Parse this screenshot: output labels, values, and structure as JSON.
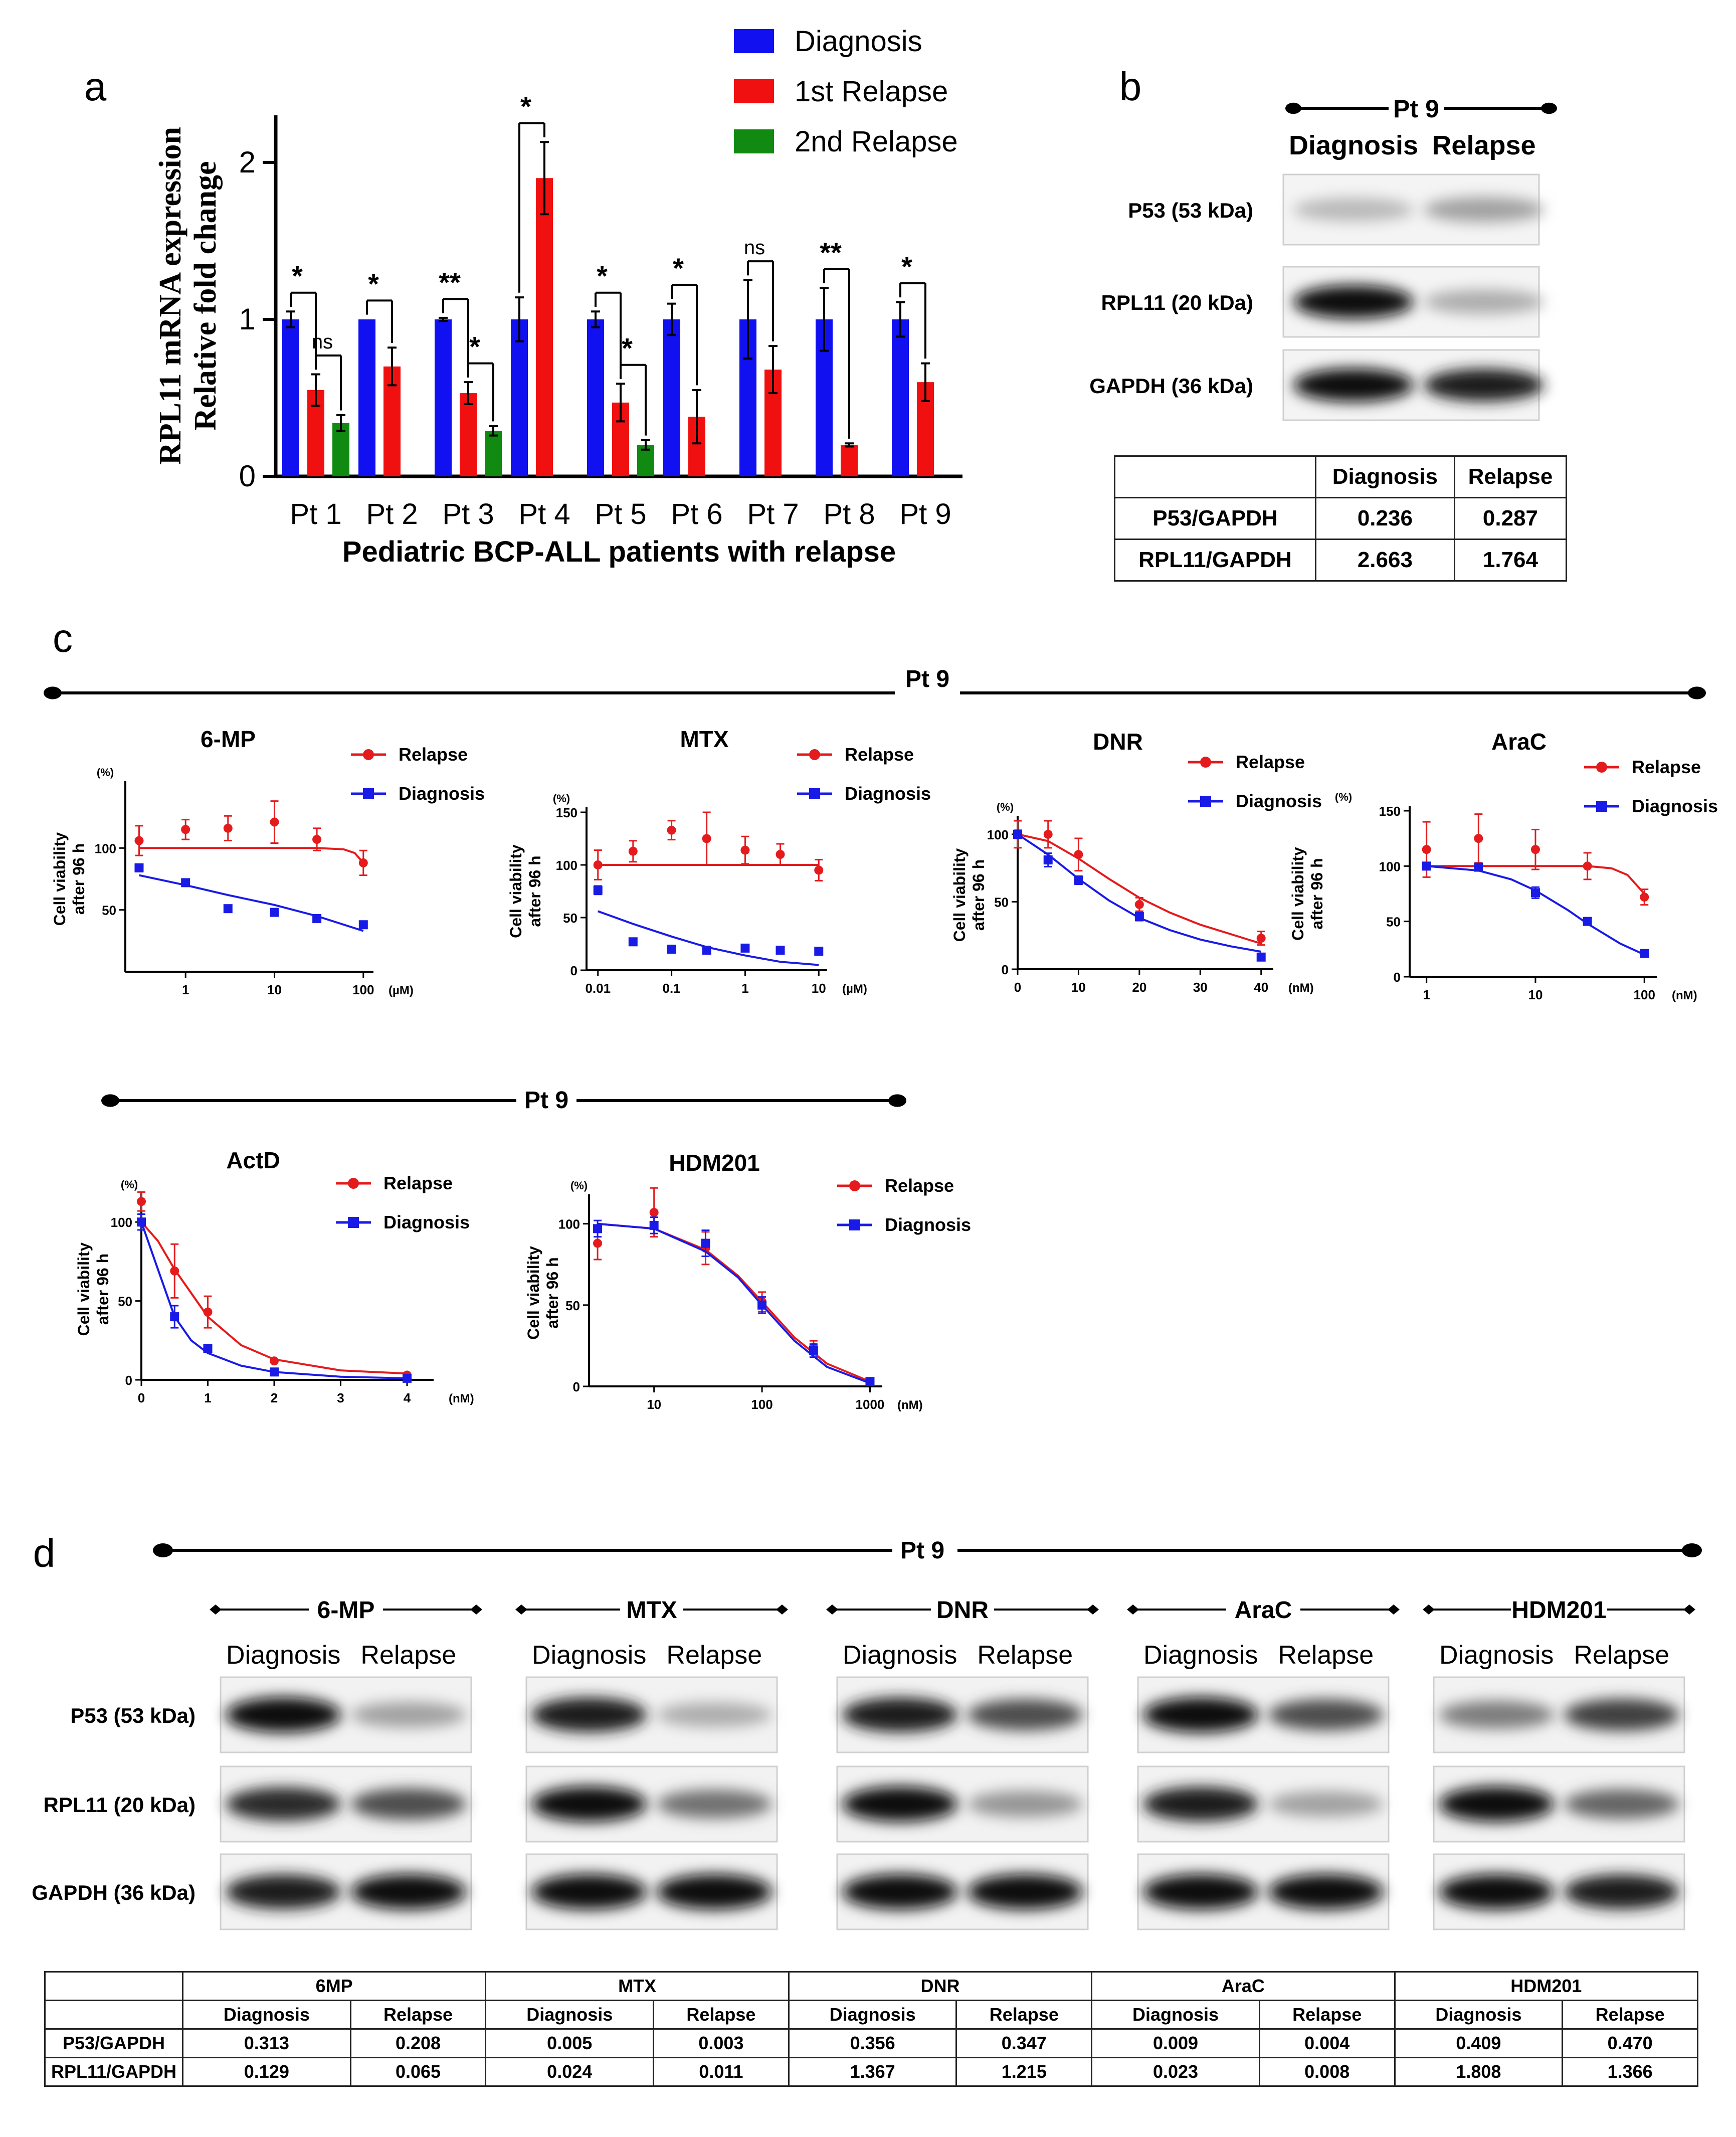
{
  "panel_labels": {
    "a": "a",
    "b": "b",
    "c": "c",
    "d": "d"
  },
  "pt9": "Pt 9",
  "colors": {
    "diagnosis": "#1010f0",
    "relapse1": "#f01010",
    "relapse2": "#108a10",
    "relapse_line": "#e41a1c",
    "diagnosis_line": "#1a1ae6"
  },
  "chart_data": [
    {
      "id": "a",
      "type": "bar",
      "title": "",
      "ylabel_line1": "RPL11 mRNA expression",
      "ylabel_line2": "Relative fold change",
      "xlabel": "Pediatric BCP-ALL patients with relapse",
      "categories": [
        "Pt 1",
        "Pt 2",
        "Pt 3",
        "Pt 4",
        "Pt 5",
        "Pt 6",
        "Pt 7",
        "Pt 8",
        "Pt 9"
      ],
      "ylim": [
        0,
        2.3
      ],
      "yticks": [
        "0",
        "1",
        "2"
      ],
      "legend": [
        "Diagnosis",
        "1st Relapse",
        "2nd Relapse"
      ],
      "series": [
        {
          "name": "Diagnosis",
          "values": [
            1.0,
            1.0,
            1.0,
            1.0,
            1.0,
            1.0,
            1.0,
            1.0,
            1.0
          ],
          "errors": [
            0.05,
            0.0,
            0.01,
            0.14,
            0.05,
            0.1,
            0.25,
            0.2,
            0.11
          ]
        },
        {
          "name": "1st Relapse",
          "values": [
            0.55,
            0.7,
            0.53,
            1.9,
            0.47,
            0.38,
            0.68,
            0.2,
            0.6
          ],
          "errors": [
            0.1,
            0.12,
            0.07,
            0.23,
            0.12,
            0.17,
            0.15,
            0.01,
            0.12
          ]
        },
        {
          "name": "2nd Relapse",
          "values": [
            0.34,
            null,
            0.29,
            null,
            0.2,
            null,
            null,
            null,
            null
          ],
          "errors": [
            0.05,
            null,
            0.03,
            null,
            0.03,
            null,
            null,
            null,
            null
          ]
        }
      ],
      "significance": [
        {
          "cat": 0,
          "from": 0,
          "to": 1,
          "label": "*"
        },
        {
          "cat": 0,
          "from": 1,
          "to": 2,
          "label": "ns"
        },
        {
          "cat": 1,
          "from": 0,
          "to": 1,
          "label": "*"
        },
        {
          "cat": 2,
          "from": 0,
          "to": 1,
          "label": "**"
        },
        {
          "cat": 2,
          "from": 1,
          "to": 2,
          "label": "*"
        },
        {
          "cat": 3,
          "from": 0,
          "to": 1,
          "label": "*"
        },
        {
          "cat": 4,
          "from": 0,
          "to": 1,
          "label": "*"
        },
        {
          "cat": 4,
          "from": 1,
          "to": 2,
          "label": "*"
        },
        {
          "cat": 5,
          "from": 0,
          "to": 1,
          "label": "*"
        },
        {
          "cat": 6,
          "from": 0,
          "to": 1,
          "label": "ns"
        },
        {
          "cat": 7,
          "from": 0,
          "to": 1,
          "label": "**"
        },
        {
          "cat": 8,
          "from": 0,
          "to": 1,
          "label": "*"
        }
      ]
    },
    {
      "id": "c-6mp",
      "type": "scatter",
      "title": "6-MP",
      "scale": "log",
      "unit": "(µM)",
      "xticks": [
        1,
        10,
        100
      ],
      "xtick_labels": [
        "1",
        "10",
        "100"
      ],
      "yticks": [
        50,
        100
      ],
      "ylim": [
        0,
        150
      ],
      "ylabel_line1": "Cell viability",
      "ylabel_line2": "after 96 h",
      "series": [
        {
          "name": "Relapse",
          "x": [
            0.3,
            1,
            3,
            10,
            30,
            100
          ],
          "y": [
            106,
            115,
            116,
            121,
            107,
            88
          ],
          "err": [
            12,
            8,
            10,
            17,
            9,
            10
          ],
          "fit": [
            [
              0.3,
              100
            ],
            [
              30,
              100
            ],
            [
              60,
              99
            ],
            [
              80,
              96
            ],
            [
              100,
              88
            ]
          ]
        },
        {
          "name": "Diagnosis",
          "x": [
            0.3,
            1,
            3,
            10,
            30,
            100
          ],
          "y": [
            84,
            72,
            51,
            48,
            43,
            38
          ],
          "err": [
            3,
            0,
            0,
            0,
            0,
            0
          ],
          "fit": [
            [
              0.3,
              78
            ],
            [
              1,
              70
            ],
            [
              3,
              62
            ],
            [
              10,
              54
            ],
            [
              30,
              45
            ],
            [
              100,
              33
            ]
          ]
        }
      ]
    },
    {
      "id": "c-mtx",
      "type": "scatter",
      "title": "MTX",
      "scale": "log",
      "unit": "(µM)",
      "xticks": [
        0.01,
        0.1,
        1,
        10
      ],
      "xtick_labels": [
        "0.01",
        "0.1",
        "1",
        "10"
      ],
      "yticks": [
        0,
        50,
        100,
        150
      ],
      "ylim": [
        0,
        150
      ],
      "ylabel_line1": "Cell viability",
      "ylabel_line2": "after 96 h",
      "series": [
        {
          "name": "Relapse",
          "x": [
            0.01,
            0.03,
            0.1,
            0.3,
            1,
            3,
            10
          ],
          "y": [
            100,
            113,
            133,
            125,
            114,
            110,
            95
          ],
          "err": [
            14,
            10,
            9,
            25,
            13,
            10,
            10
          ],
          "fit": [
            [
              0.01,
              100
            ],
            [
              10,
              100
            ]
          ]
        },
        {
          "name": "Diagnosis",
          "x": [
            0.01,
            0.03,
            0.1,
            0.3,
            1,
            3,
            10
          ],
          "y": [
            76,
            27,
            20,
            19,
            21,
            19,
            18
          ],
          "err": [
            4,
            0,
            0,
            0,
            0,
            0,
            0
          ],
          "fit": [
            [
              0.01,
              56
            ],
            [
              0.03,
              44
            ],
            [
              0.1,
              32
            ],
            [
              0.3,
              22
            ],
            [
              1,
              14
            ],
            [
              3,
              8
            ],
            [
              10,
              5
            ]
          ]
        }
      ]
    },
    {
      "id": "c-dnr",
      "type": "scatter",
      "title": "DNR",
      "scale": "linear",
      "unit": "(nM)",
      "xticks": [
        0,
        10,
        20,
        30,
        40
      ],
      "xtick_labels": [
        "0",
        "10",
        "20",
        "30",
        "40"
      ],
      "xlim": [
        0,
        42
      ],
      "yticks": [
        0,
        50,
        100
      ],
      "ylim": [
        0,
        110
      ],
      "ylabel_line1": "Cell viability",
      "ylabel_line2": "after 96 h",
      "series": [
        {
          "name": "Relapse",
          "x": [
            0,
            5,
            10,
            20,
            40
          ],
          "y": [
            100,
            100,
            85,
            48,
            23
          ],
          "err": [
            10,
            10,
            12,
            5,
            5
          ],
          "fit": [
            [
              0,
              100
            ],
            [
              5,
              95
            ],
            [
              10,
              82
            ],
            [
              15,
              67
            ],
            [
              20,
              53
            ],
            [
              25,
              42
            ],
            [
              30,
              33
            ],
            [
              35,
              26
            ],
            [
              40,
              19
            ]
          ]
        },
        {
          "name": "Diagnosis",
          "x": [
            0,
            5,
            10,
            20,
            40
          ],
          "y": [
            100,
            81,
            66,
            39,
            9
          ],
          "err": [
            3,
            5,
            3,
            3,
            0
          ],
          "fit": [
            [
              0,
              100
            ],
            [
              5,
              85
            ],
            [
              10,
              67
            ],
            [
              15,
              51
            ],
            [
              20,
              38
            ],
            [
              25,
              29
            ],
            [
              30,
              22
            ],
            [
              35,
              17
            ],
            [
              40,
              13
            ]
          ]
        }
      ]
    },
    {
      "id": "c-arac",
      "type": "scatter",
      "title": "AraC",
      "scale": "log",
      "unit": "(nM)",
      "xticks": [
        1,
        10,
        100
      ],
      "xtick_labels": [
        "1",
        "10",
        "100"
      ],
      "yticks": [
        0,
        50,
        100,
        150
      ],
      "ylim": [
        0,
        150
      ],
      "ylabel_line1": "Cell viability",
      "ylabel_line2": "after 96 h",
      "series": [
        {
          "name": "Relapse",
          "x": [
            1,
            3,
            10,
            30,
            100
          ],
          "y": [
            115,
            125,
            115,
            100,
            72
          ],
          "err": [
            25,
            22,
            18,
            12,
            7
          ],
          "fit": [
            [
              1,
              100
            ],
            [
              30,
              100
            ],
            [
              50,
              98
            ],
            [
              70,
              92
            ],
            [
              100,
              75
            ]
          ]
        },
        {
          "name": "Diagnosis",
          "x": [
            1,
            3,
            10,
            30,
            100
          ],
          "y": [
            100,
            99,
            76,
            50,
            21
          ],
          "err": [
            0,
            3,
            5,
            0,
            0
          ],
          "fit": [
            [
              1,
              100
            ],
            [
              3,
              96
            ],
            [
              6,
              88
            ],
            [
              10,
              78
            ],
            [
              20,
              60
            ],
            [
              30,
              48
            ],
            [
              60,
              30
            ],
            [
              100,
              20
            ]
          ]
        }
      ]
    },
    {
      "id": "c-actd",
      "type": "scatter",
      "title": "ActD",
      "scale": "linear",
      "unit": "(nM)",
      "xticks": [
        0,
        1,
        2,
        3,
        4
      ],
      "xtick_labels": [
        "0",
        "1",
        "2",
        "3",
        "4"
      ],
      "xlim": [
        0,
        4.4
      ],
      "yticks": [
        0,
        50,
        100
      ],
      "ylim": [
        0,
        115
      ],
      "ylabel_line1": "Cell viability",
      "ylabel_line2": "after 96 h",
      "series": [
        {
          "name": "Relapse",
          "x": [
            0,
            0.5,
            1,
            2,
            4
          ],
          "y": [
            113,
            69,
            43,
            12,
            3
          ],
          "err": [
            6,
            17,
            10,
            0,
            0
          ],
          "fit": [
            [
              0,
              100
            ],
            [
              0.25,
              88
            ],
            [
              0.5,
              70
            ],
            [
              0.75,
              55
            ],
            [
              1,
              40
            ],
            [
              1.5,
              22
            ],
            [
              2,
              13
            ],
            [
              3,
              6
            ],
            [
              4,
              4
            ]
          ]
        },
        {
          "name": "Diagnosis",
          "x": [
            0,
            0.5,
            1,
            2,
            4
          ],
          "y": [
            100,
            40,
            20,
            5,
            1
          ],
          "err": [
            5,
            7,
            0,
            0,
            0
          ],
          "fit": [
            [
              0,
              100
            ],
            [
              0.25,
              70
            ],
            [
              0.5,
              40
            ],
            [
              0.75,
              25
            ],
            [
              1,
              17
            ],
            [
              1.5,
              9
            ],
            [
              2,
              5
            ],
            [
              3,
              2
            ],
            [
              4,
              1
            ]
          ]
        }
      ]
    },
    {
      "id": "c-hdm201",
      "type": "scatter",
      "title": "HDM201",
      "scale": "log",
      "unit": "(nM)",
      "xticks": [
        10,
        100,
        1000
      ],
      "xtick_labels": [
        "10",
        "100",
        "1000"
      ],
      "xlim": [
        2.5,
        1300
      ],
      "yticks": [
        0,
        50,
        100
      ],
      "ylim": [
        0,
        115
      ],
      "ylabel_line1": "Cell viability",
      "ylabel_line2": "after 96 h",
      "series": [
        {
          "name": "Relapse",
          "x": [
            3,
            10,
            30,
            100,
            300,
            1000
          ],
          "y": [
            88,
            107,
            85,
            52,
            24,
            3
          ],
          "err": [
            10,
            15,
            10,
            6,
            4,
            2
          ],
          "fit": [
            [
              3,
              100
            ],
            [
              10,
              97
            ],
            [
              30,
              84
            ],
            [
              60,
              68
            ],
            [
              100,
              52
            ],
            [
              200,
              30
            ],
            [
              400,
              14
            ],
            [
              1000,
              3
            ]
          ]
        },
        {
          "name": "Diagnosis",
          "x": [
            3,
            10,
            30,
            100,
            300,
            1000
          ],
          "y": [
            97,
            99,
            88,
            50,
            22,
            3
          ],
          "err": [
            5,
            5,
            8,
            5,
            4,
            2
          ],
          "fit": [
            [
              3,
              100
            ],
            [
              10,
              97
            ],
            [
              30,
              83
            ],
            [
              60,
              67
            ],
            [
              100,
              50
            ],
            [
              200,
              28
            ],
            [
              400,
              12
            ],
            [
              1000,
              2
            ]
          ]
        }
      ]
    }
  ],
  "legend_labels": {
    "relapse": "Relapse",
    "diagnosis": "Diagnosis",
    "pct": "(%)"
  },
  "blot_b": {
    "pt": "Pt 9",
    "cols": [
      "Diagnosis",
      "Relapse"
    ],
    "rows": [
      "P53 (53 kDa)",
      "RPL11 (20 kDa)",
      "GAPDH (36 kDa)"
    ],
    "intensity": [
      [
        0.25,
        0.35
      ],
      [
        0.95,
        0.3
      ],
      [
        0.95,
        0.9
      ]
    ]
  },
  "table_b": {
    "header": [
      "",
      "Diagnosis",
      "Relapse"
    ],
    "rows": [
      [
        "P53/GAPDH",
        "0.236",
        "0.287"
      ],
      [
        "RPL11/GAPDH",
        "2.663",
        "1.764"
      ]
    ]
  },
  "blot_d": {
    "groups": [
      "6-MP",
      "MTX",
      "DNR",
      "AraC",
      "HDM201"
    ],
    "cols": [
      "Diagnosis",
      "Relapse"
    ],
    "rows": [
      "P53 (53 kDa)",
      "RPL11 (20 kDa)",
      "GAPDH (36 kDa)"
    ],
    "intensity": [
      [
        [
          0.95,
          0.35
        ],
        [
          0.85,
          0.7
        ],
        [
          0.9,
          0.95
        ]
      ],
      [
        [
          0.9,
          0.3
        ],
        [
          0.95,
          0.55
        ],
        [
          0.95,
          0.95
        ]
      ],
      [
        [
          0.9,
          0.7
        ],
        [
          0.95,
          0.4
        ],
        [
          0.95,
          0.95
        ]
      ],
      [
        [
          0.95,
          0.7
        ],
        [
          0.9,
          0.35
        ],
        [
          0.95,
          0.95
        ]
      ],
      [
        [
          0.5,
          0.75
        ],
        [
          0.95,
          0.6
        ],
        [
          0.95,
          0.9
        ]
      ]
    ]
  },
  "table_d": {
    "groups": [
      "6MP",
      "MTX",
      "DNR",
      "AraC",
      "HDM201"
    ],
    "subheader": [
      "Diagnosis",
      "Relapse"
    ],
    "rows": [
      {
        "label": "P53/GAPDH",
        "values": [
          "0.313",
          "0.208",
          "0.005",
          "0.003",
          "0.356",
          "0.347",
          "0.009",
          "0.004",
          "0.409",
          "0.470"
        ]
      },
      {
        "label": "RPL11/GAPDH",
        "values": [
          "0.129",
          "0.065",
          "0.024",
          "0.011",
          "1.367",
          "1.215",
          "0.023",
          "0.008",
          "1.808",
          "1.366"
        ]
      }
    ]
  }
}
